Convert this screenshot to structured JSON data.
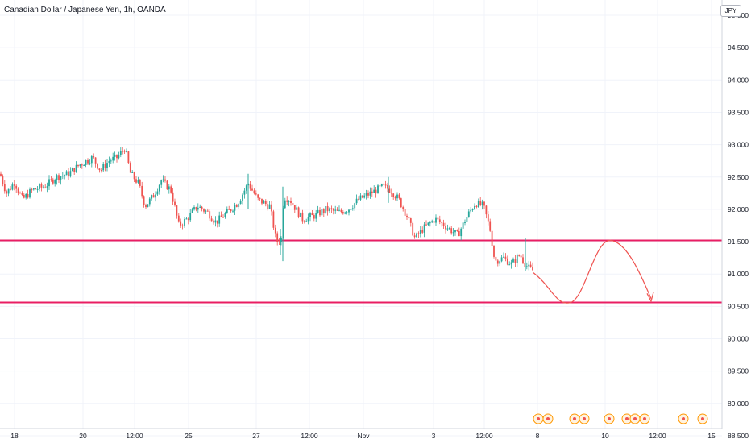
{
  "title": "Canadian Dollar / Japanese Yen, 1h, OANDA",
  "currency_badge": "JPY",
  "colors": {
    "up": "#26a69a",
    "down": "#ef5350",
    "level": "#e91e63",
    "grid": "#f0f3fa",
    "axis_text": "#131722"
  },
  "chart_data": {
    "type": "candlestick",
    "title": "Canadian Dollar / Japanese Yen, 1h, OANDA",
    "ylim": [
      88.5,
      95.1
    ],
    "y_ticks": [
      "95.000",
      "94.500",
      "94.000",
      "93.500",
      "93.000",
      "92.500",
      "92.000",
      "91.500",
      "91.000",
      "90.500",
      "90.000",
      "89.500",
      "89.000",
      "88.500"
    ],
    "x_ticks": [
      "18",
      "20",
      "12:00",
      "25",
      "27",
      "12:00",
      "Nov",
      "3",
      "12:00",
      "8",
      "10",
      "12:00",
      "15"
    ],
    "price_path": [
      [
        0,
        92.55
      ],
      [
        8,
        92.25
      ],
      [
        18,
        92.42
      ],
      [
        28,
        92.15
      ],
      [
        40,
        92.3
      ],
      [
        55,
        92.35
      ],
      [
        70,
        92.5
      ],
      [
        85,
        92.55
      ],
      [
        100,
        92.7
      ],
      [
        115,
        92.8
      ],
      [
        125,
        92.6
      ],
      [
        135,
        92.75
      ],
      [
        145,
        92.8
      ],
      [
        155,
        92.95
      ],
      [
        162,
        92.55
      ],
      [
        172,
        92.4
      ],
      [
        180,
        92.05
      ],
      [
        190,
        92.2
      ],
      [
        200,
        92.45
      ],
      [
        212,
        92.3
      ],
      [
        222,
        91.75
      ],
      [
        232,
        91.85
      ],
      [
        245,
        92.05
      ],
      [
        258,
        91.95
      ],
      [
        268,
        91.8
      ],
      [
        282,
        91.95
      ],
      [
        295,
        92.1
      ],
      [
        308,
        92.4
      ],
      [
        320,
        92.15
      ],
      [
        335,
        92.05
      ],
      [
        343,
        91.5
      ],
      [
        349,
        91.55
      ],
      [
        352,
        92.2
      ],
      [
        360,
        92.15
      ],
      [
        375,
        91.85
      ],
      [
        390,
        91.9
      ],
      [
        405,
        92.0
      ],
      [
        420,
        91.95
      ],
      [
        432,
        92.0
      ],
      [
        445,
        92.15
      ],
      [
        460,
        92.25
      ],
      [
        475,
        92.35
      ],
      [
        485,
        92.3
      ],
      [
        495,
        92.15
      ],
      [
        505,
        91.9
      ],
      [
        515,
        91.55
      ],
      [
        525,
        91.7
      ],
      [
        540,
        91.85
      ],
      [
        552,
        91.75
      ],
      [
        568,
        91.6
      ],
      [
        580,
        91.9
      ],
      [
        590,
        92.1
      ],
      [
        600,
        92.05
      ],
      [
        608,
        91.7
      ],
      [
        614,
        91.2
      ],
      [
        625,
        91.25
      ],
      [
        635,
        91.15
      ],
      [
        645,
        91.3
      ],
      [
        655,
        91.1
      ],
      [
        662,
        91.05
      ]
    ],
    "levels": [
      {
        "label": "91.519",
        "value": 91.519
      },
      {
        "label": "90.560",
        "value": 90.56
      }
    ],
    "last_price": {
      "label": "91.045",
      "value": 91.045
    },
    "projection": {
      "description": ""
    },
    "event_markers": 11
  }
}
